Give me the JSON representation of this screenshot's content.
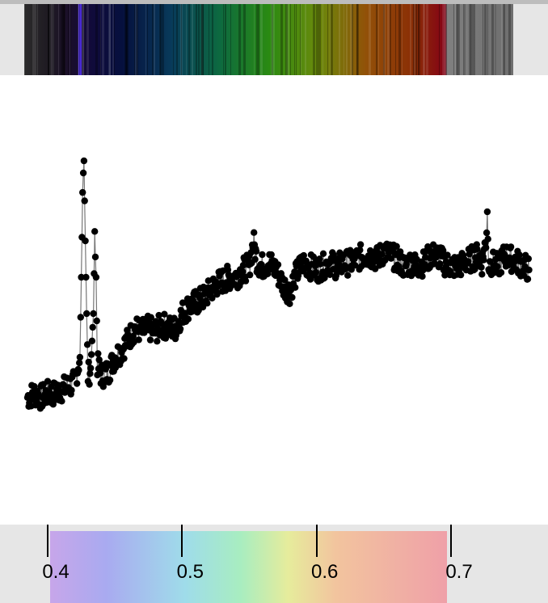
{
  "chart_data": {
    "type": "line",
    "title": "",
    "xlabel": "",
    "ylabel": "",
    "xlim": [
      0.375,
      0.76
    ],
    "ylim": [
      0.0,
      1.0
    ],
    "grid": false,
    "legend": "none",
    "x_ticks": [
      {
        "value": 0.4,
        "label": "0.4"
      },
      {
        "value": 0.5,
        "label": "0.5"
      },
      {
        "value": 0.6,
        "label": "0.6"
      },
      {
        "value": 0.7,
        "label": "0.7"
      }
    ],
    "series": [
      {
        "marker_color": "#000000",
        "line_color": "#777777",
        "points": [
          [
            0.385,
            0.27
          ],
          [
            0.39,
            0.28
          ],
          [
            0.395,
            0.27
          ],
          [
            0.4,
            0.28
          ],
          [
            0.405,
            0.28
          ],
          [
            0.41,
            0.29
          ],
          [
            0.415,
            0.3
          ],
          [
            0.42,
            0.31
          ],
          [
            0.424,
            0.38
          ],
          [
            0.426,
            0.82
          ],
          [
            0.427,
            0.92
          ],
          [
            0.428,
            0.7
          ],
          [
            0.429,
            0.5
          ],
          [
            0.43,
            0.33
          ],
          [
            0.432,
            0.35
          ],
          [
            0.434,
            0.5
          ],
          [
            0.435,
            0.72
          ],
          [
            0.436,
            0.6
          ],
          [
            0.437,
            0.36
          ],
          [
            0.44,
            0.33
          ],
          [
            0.445,
            0.34
          ],
          [
            0.45,
            0.38
          ],
          [
            0.455,
            0.4
          ],
          [
            0.46,
            0.43
          ],
          [
            0.465,
            0.46
          ],
          [
            0.47,
            0.45
          ],
          [
            0.475,
            0.46
          ],
          [
            0.48,
            0.45
          ],
          [
            0.485,
            0.47
          ],
          [
            0.49,
            0.46
          ],
          [
            0.495,
            0.46
          ],
          [
            0.5,
            0.5
          ],
          [
            0.505,
            0.52
          ],
          [
            0.51,
            0.53
          ],
          [
            0.515,
            0.54
          ],
          [
            0.52,
            0.56
          ],
          [
            0.525,
            0.58
          ],
          [
            0.53,
            0.59
          ],
          [
            0.535,
            0.6
          ],
          [
            0.54,
            0.6
          ],
          [
            0.545,
            0.62
          ],
          [
            0.55,
            0.63
          ],
          [
            0.553,
            0.7
          ],
          [
            0.556,
            0.64
          ],
          [
            0.56,
            0.63
          ],
          [
            0.565,
            0.64
          ],
          [
            0.57,
            0.62
          ],
          [
            0.575,
            0.58
          ],
          [
            0.58,
            0.56
          ],
          [
            0.585,
            0.61
          ],
          [
            0.59,
            0.64
          ],
          [
            0.595,
            0.63
          ],
          [
            0.6,
            0.62
          ],
          [
            0.605,
            0.63
          ],
          [
            0.61,
            0.64
          ],
          [
            0.615,
            0.63
          ],
          [
            0.62,
            0.64
          ],
          [
            0.625,
            0.64
          ],
          [
            0.63,
            0.65
          ],
          [
            0.635,
            0.66
          ],
          [
            0.64,
            0.66
          ],
          [
            0.645,
            0.65
          ],
          [
            0.65,
            0.67
          ],
          [
            0.655,
            0.66
          ],
          [
            0.66,
            0.65
          ],
          [
            0.665,
            0.63
          ],
          [
            0.67,
            0.64
          ],
          [
            0.675,
            0.63
          ],
          [
            0.68,
            0.64
          ],
          [
            0.685,
            0.66
          ],
          [
            0.69,
            0.66
          ],
          [
            0.695,
            0.64
          ],
          [
            0.7,
            0.63
          ],
          [
            0.705,
            0.63
          ],
          [
            0.71,
            0.64
          ],
          [
            0.715,
            0.65
          ],
          [
            0.72,
            0.66
          ],
          [
            0.723,
            0.64
          ],
          [
            0.726,
            0.7
          ],
          [
            0.727,
            0.78
          ],
          [
            0.728,
            0.63
          ],
          [
            0.73,
            0.64
          ],
          [
            0.735,
            0.63
          ],
          [
            0.74,
            0.66
          ],
          [
            0.745,
            0.65
          ],
          [
            0.75,
            0.64
          ],
          [
            0.755,
            0.63
          ],
          [
            0.758,
            0.62
          ]
        ]
      }
    ]
  }
}
